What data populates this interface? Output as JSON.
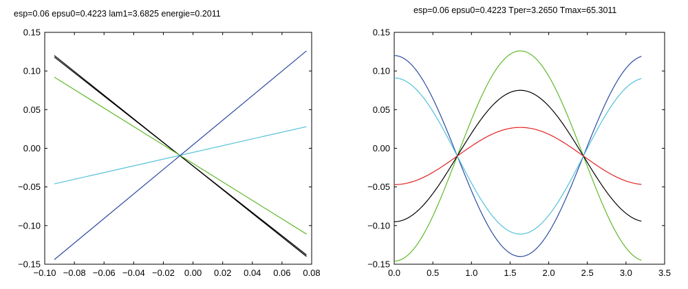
{
  "chart_data": [
    {
      "type": "line",
      "title": "esp=0.06 epsu0=0.4223 lam1=3.6825 energie=0.2011",
      "xlabel": "",
      "ylabel": "",
      "xlim": [
        -0.1,
        0.08
      ],
      "ylim": [
        -0.15,
        0.15
      ],
      "grid": false,
      "xticks": [
        -0.1,
        -0.08,
        -0.06,
        -0.04,
        -0.02,
        0.0,
        0.02,
        0.04,
        0.06,
        0.08
      ],
      "xtick_labels": [
        "-0.10",
        "-0.08",
        "-0.06",
        "-0.04",
        "-0.02",
        "0.00",
        "0.02",
        "0.04",
        "0.06",
        "0.08"
      ],
      "yticks": [
        -0.15,
        -0.1,
        -0.05,
        0.0,
        0.05,
        0.1,
        0.15
      ],
      "ytick_labels": [
        "-0.15",
        "-0.10",
        "-0.05",
        "0.00",
        "0.05",
        "0.10",
        "0.15"
      ],
      "series": [
        {
          "color": "#000000",
          "x": [
            -0.0935,
            0.0765
          ],
          "y": [
            0.118,
            -0.138
          ]
        },
        {
          "color": "#000000",
          "x": [
            -0.0935,
            0.0765
          ],
          "y": [
            0.12,
            -0.14
          ]
        },
        {
          "color": "#5fb82a",
          "x": [
            -0.0935,
            0.0765
          ],
          "y": [
            0.092,
            -0.111
          ]
        },
        {
          "color": "#4fc0d8",
          "x": [
            -0.0935,
            0.0765
          ],
          "y": [
            -0.046,
            0.028
          ]
        },
        {
          "color": "#2c4aa0",
          "x": [
            -0.0935,
            0.0765
          ],
          "y": [
            -0.144,
            0.126
          ]
        }
      ]
    },
    {
      "type": "line",
      "title": "esp=0.06 epsu0=0.4223 Tper=3.2650 Tmax=65.3011",
      "xlabel": "",
      "ylabel": "",
      "xlim": [
        0.0,
        3.5
      ],
      "ylim": [
        -0.15,
        0.15
      ],
      "grid": false,
      "xticks": [
        0.0,
        0.5,
        1.0,
        1.5,
        2.0,
        2.5,
        3.0,
        3.5
      ],
      "xtick_labels": [
        "0.0",
        "0.5",
        "1.0",
        "1.5",
        "2.0",
        "2.5",
        "3.0",
        "3.5"
      ],
      "yticks": [
        -0.15,
        -0.1,
        -0.05,
        0.0,
        0.05,
        0.1,
        0.15
      ],
      "ytick_labels": [
        "-0.15",
        "-0.10",
        "-0.05",
        "0.00",
        "0.05",
        "0.10",
        "0.15"
      ],
      "period": 3.265,
      "series": [
        {
          "color": "#2c4aa0",
          "offset": -0.01,
          "amplitude": 0.13
        },
        {
          "color": "#5fb82a",
          "offset": -0.01,
          "amplitude": -0.136
        },
        {
          "color": "#4fc0d8",
          "offset": -0.01,
          "amplitude": 0.101
        },
        {
          "color": "#000000",
          "offset": -0.01,
          "amplitude": -0.085
        },
        {
          "color": "#e02020",
          "offset": -0.01,
          "amplitude": -0.037
        }
      ]
    }
  ]
}
